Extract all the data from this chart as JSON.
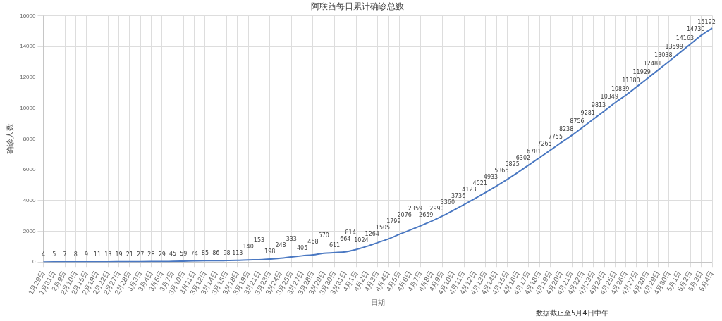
{
  "chart_data": {
    "type": "line",
    "title": "阿联酋每日累计确诊总数",
    "xlabel": "日期",
    "ylabel": "确诊人数",
    "annotations": [
      "数据截止至5月4日中午"
    ],
    "categories": [
      "1月29日",
      "1月31日",
      "2月9日",
      "2月10日",
      "2月15日",
      "2月19日",
      "2月22日",
      "2月27日",
      "2月28日",
      "3月3日",
      "3月4日",
      "3月5日",
      "3月7日",
      "3月10日",
      "3月11日",
      "3月12日",
      "3月14日",
      "3月15日",
      "3月18日",
      "3月19日",
      "3月21日",
      "3月23日",
      "3月24日",
      "3月25日",
      "3月27日",
      "3月28日",
      "3月29日",
      "3月30日",
      "3月31日",
      "4月1日",
      "4月2日",
      "4月3日",
      "4月4日",
      "4月5日",
      "4月6日",
      "4月7日",
      "4月8日",
      "4月9日",
      "4月10日",
      "4月11日",
      "4月12日",
      "4月13日",
      "4月14日",
      "4月15日",
      "4月16日",
      "4月17日",
      "4月18日",
      "4月19日",
      "4月20日",
      "4月21日",
      "4月22日",
      "4月23日",
      "4月24日",
      "4月25日",
      "4月26日",
      "4月27日",
      "4月28日",
      "4月29日",
      "4月30日",
      "5月1日",
      "5月2日",
      "5月3日",
      "5月4日"
    ],
    "series": [
      {
        "color": "#4a78c2",
        "values": [
          4,
          5,
          7,
          8,
          9,
          11,
          13,
          19,
          21,
          27,
          28,
          29,
          45,
          59,
          74,
          85,
          86,
          98,
          113,
          140,
          153,
          198,
          248,
          333,
          405,
          468,
          570,
          611,
          664,
          814,
          1024,
          1264,
          1505,
          1799,
          2076,
          2359,
          2659,
          2990,
          3360,
          3736,
          4123,
          4521,
          4933,
          5365,
          5825,
          6302,
          6781,
          7265,
          7755,
          8238,
          8756,
          9281,
          9813,
          10349,
          10839,
          11380,
          11929,
          12481,
          13038,
          13599,
          14163,
          14730,
          15192
        ]
      }
    ],
    "ylim": [
      0,
      16000
    ],
    "yticks": [
      0,
      2000,
      4000,
      6000,
      8000,
      10000,
      12000,
      14000,
      16000
    ],
    "grid": true,
    "data_labels": true,
    "marker": "none",
    "line_style": "solid",
    "legend": false
  }
}
